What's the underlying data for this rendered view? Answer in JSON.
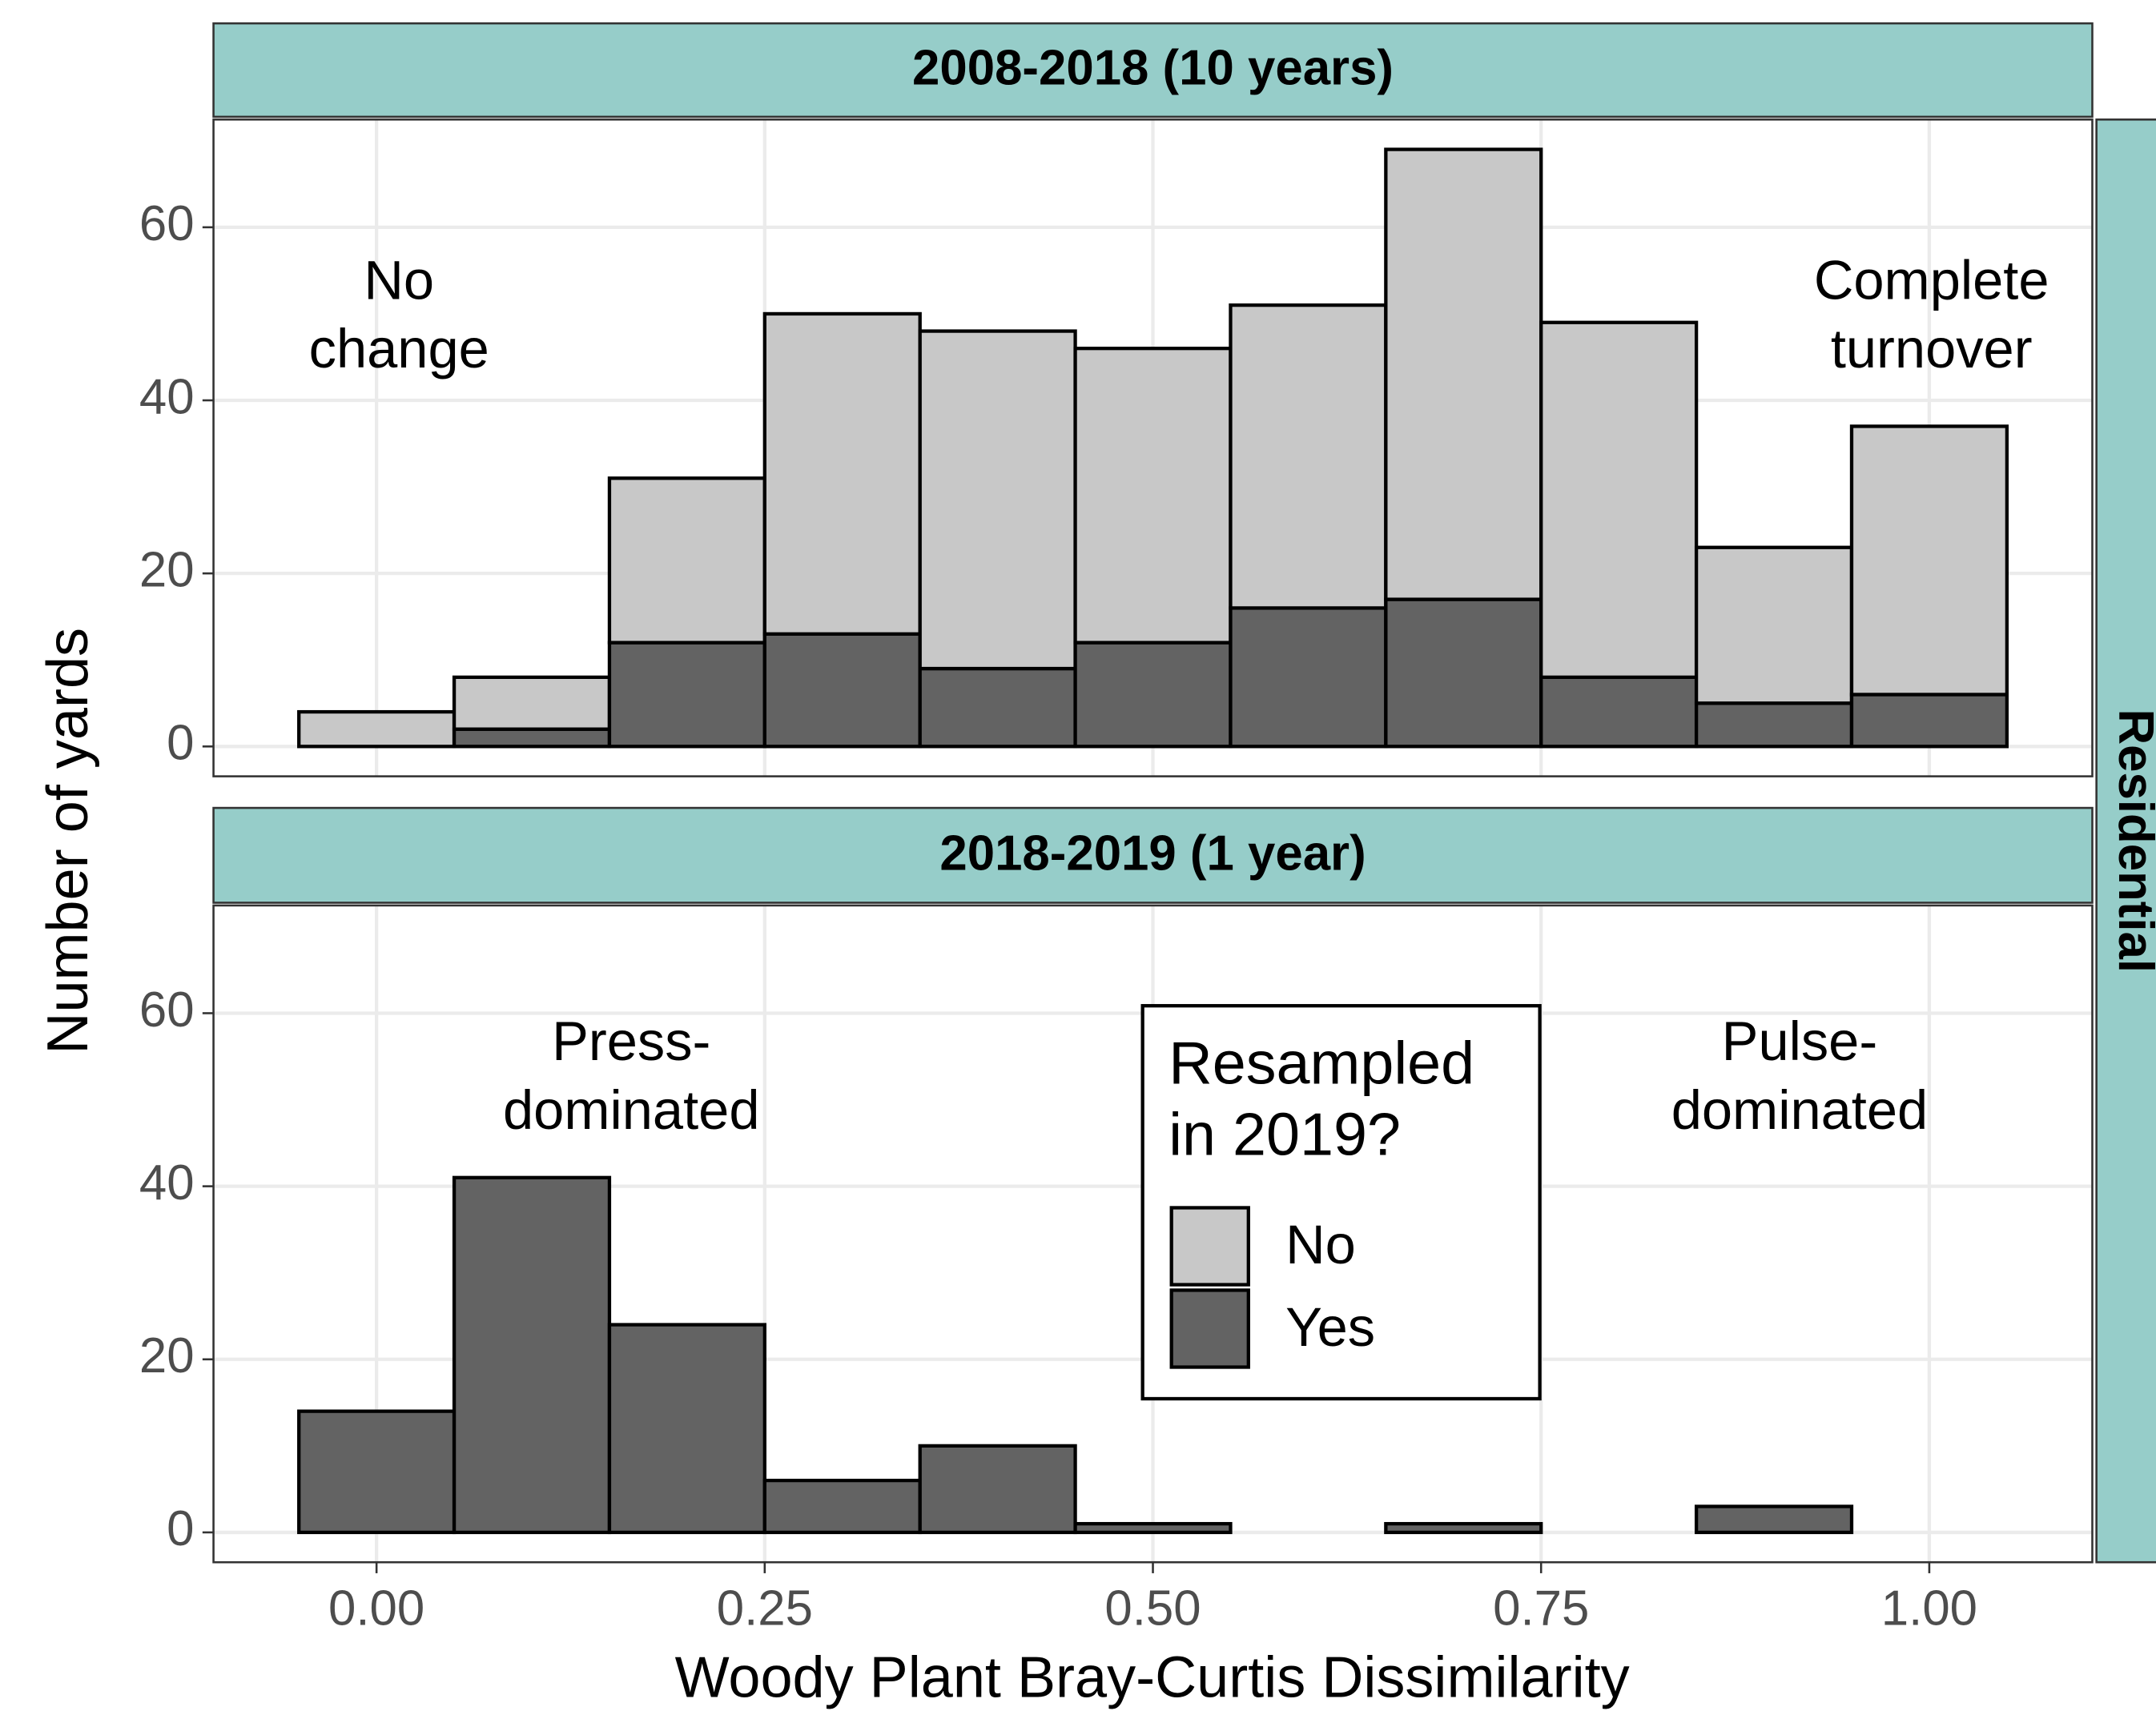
{
  "figure": {
    "x_label": "Woody Plant Bray-Curtis Dissimilarity",
    "y_label": "Number of yards",
    "row_label": "Residential"
  },
  "chart_data": [
    {
      "type": "histogram",
      "title": "2008-2018 (10 years)",
      "bins": [
        -0.05,
        0.05,
        0.15,
        0.25,
        0.35,
        0.45,
        0.55,
        0.65,
        0.75,
        0.85,
        0.95,
        1.05
      ],
      "series": [
        {
          "color": "#636363",
          "values": [
            0,
            2,
            12,
            13,
            9,
            12,
            16,
            17,
            8,
            5,
            6
          ]
        },
        {
          "color": "#c8c8c8",
          "values": [
            4,
            6,
            19,
            37,
            39,
            34,
            35,
            52,
            41,
            18,
            31
          ]
        }
      ],
      "stacked": true,
      "xlim": [
        -0.105,
        1.105
      ],
      "xticks": [
        0,
        0.25,
        0.5,
        0.75,
        1
      ],
      "ylim": [
        -3.45,
        72.45
      ],
      "yticks": [
        0,
        20,
        40,
        60
      ],
      "grid": true,
      "annotations": [
        [
          "No",
          "change"
        ],
        [
          "Complete",
          "turnover"
        ]
      ]
    },
    {
      "type": "histogram",
      "title": "2018-2019 (1 year)",
      "bins": [
        -0.05,
        0.05,
        0.15,
        0.25,
        0.35,
        0.45,
        0.55,
        0.65,
        0.75,
        0.85,
        0.95,
        1.05
      ],
      "series": [
        {
          "name": "Yes",
          "color": "#636363",
          "values": [
            14,
            41,
            24,
            6,
            10,
            1,
            0,
            1,
            0,
            3,
            0
          ]
        },
        {
          "name": "No",
          "color": "#c8c8c8",
          "values": [
            0,
            0,
            0,
            0,
            0,
            0,
            0,
            0,
            0,
            0,
            0
          ]
        }
      ],
      "stacked": true,
      "xlim": [
        -0.105,
        1.105
      ],
      "xticks": [
        {
          "value": 0,
          "label": "0.00"
        },
        {
          "value": 0.25,
          "label": "0.25"
        },
        {
          "value": 0.5,
          "label": "0.50"
        },
        {
          "value": 0.75,
          "label": "0.75"
        },
        {
          "value": 1,
          "label": "1.00"
        }
      ],
      "ylim": [
        -3.45,
        72.45
      ],
      "yticks": [
        0,
        20,
        40,
        60
      ],
      "grid": true,
      "legend_title": [
        "Resampled",
        "in 2019?"
      ],
      "annotations": [
        [
          "Press-",
          "dominated"
        ],
        [
          "Pulse-",
          "dominated"
        ]
      ]
    }
  ]
}
